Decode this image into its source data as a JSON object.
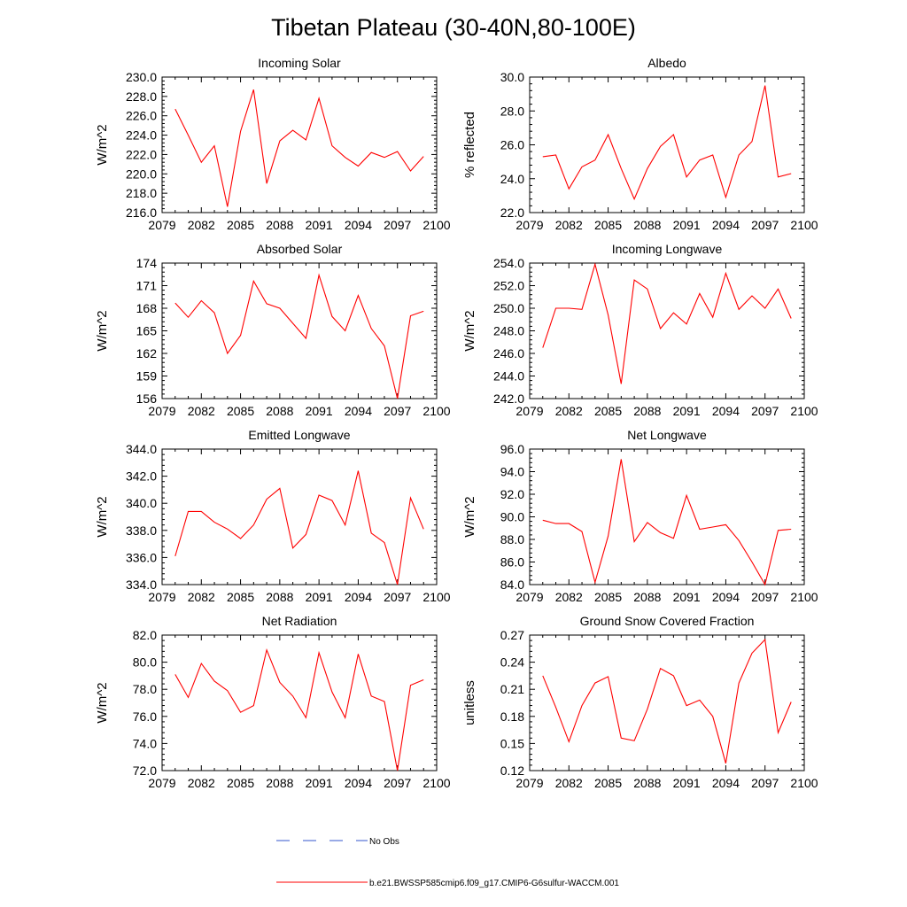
{
  "figure": {
    "title": "Tibetan Plateau (30-40N,80-100E)",
    "legend": [
      {
        "label": "No Obs",
        "color": "#3355cc",
        "style": "dashed"
      },
      {
        "label": "b.e21.BWSSP585cmip6.f09_g17.CMIP6-G6sulfur-WACCM.001",
        "color": "#ff0000",
        "style": "solid"
      }
    ]
  },
  "chart_data": [
    {
      "type": "line",
      "title": "Incoming Solar",
      "ylabel": "W/m^2",
      "xlim": [
        2079,
        2100
      ],
      "xticks": [
        2079,
        2082,
        2085,
        2088,
        2091,
        2094,
        2097,
        2100
      ],
      "ylim": [
        216.0,
        230.0
      ],
      "yticks": [
        216.0,
        218.0,
        220.0,
        222.0,
        224.0,
        226.0,
        228.0,
        230.0
      ],
      "tick_decimals": 1,
      "x": [
        2080,
        2081,
        2082,
        2083,
        2084,
        2085,
        2086,
        2087,
        2088,
        2089,
        2090,
        2091,
        2092,
        2093,
        2094,
        2095,
        2096,
        2097,
        2098,
        2099
      ],
      "series": [
        {
          "values": [
            226.7,
            224.0,
            221.2,
            222.9,
            216.6,
            224.4,
            228.7,
            219.0,
            223.4,
            224.5,
            223.5,
            227.8,
            222.9,
            221.7,
            220.8,
            222.2,
            221.7,
            222.3,
            220.3,
            221.8
          ],
          "color": "#ff0000"
        }
      ]
    },
    {
      "type": "line",
      "title": "Albedo",
      "ylabel": "% reflected",
      "xlim": [
        2079,
        2100
      ],
      "xticks": [
        2079,
        2082,
        2085,
        2088,
        2091,
        2094,
        2097,
        2100
      ],
      "ylim": [
        22.0,
        30.0
      ],
      "yticks": [
        22.0,
        24.0,
        26.0,
        28.0,
        30.0
      ],
      "tick_decimals": 1,
      "x": [
        2080,
        2081,
        2082,
        2083,
        2084,
        2085,
        2086,
        2087,
        2088,
        2089,
        2090,
        2091,
        2092,
        2093,
        2094,
        2095,
        2096,
        2097,
        2098,
        2099
      ],
      "series": [
        {
          "values": [
            25.3,
            25.4,
            23.4,
            24.7,
            25.1,
            26.6,
            24.6,
            22.8,
            24.6,
            25.9,
            26.6,
            24.1,
            25.1,
            25.4,
            22.9,
            25.4,
            26.2,
            29.5,
            24.1,
            24.3
          ],
          "color": "#ff0000"
        }
      ]
    },
    {
      "type": "line",
      "title": "Absorbed Solar",
      "ylabel": "W/m^2",
      "xlim": [
        2079,
        2100
      ],
      "xticks": [
        2079,
        2082,
        2085,
        2088,
        2091,
        2094,
        2097,
        2100
      ],
      "ylim": [
        156,
        174
      ],
      "yticks": [
        156,
        159,
        162,
        165,
        168,
        171,
        174
      ],
      "tick_decimals": 0,
      "x": [
        2080,
        2081,
        2082,
        2083,
        2084,
        2085,
        2086,
        2087,
        2088,
        2089,
        2090,
        2091,
        2092,
        2093,
        2094,
        2095,
        2096,
        2097,
        2098,
        2099
      ],
      "series": [
        {
          "values": [
            168.7,
            166.8,
            169.0,
            167.4,
            162.0,
            164.4,
            171.6,
            168.6,
            168.0,
            166.0,
            164.0,
            172.4,
            166.9,
            165.0,
            169.7,
            165.3,
            163.0,
            156.0,
            167.0,
            167.6
          ],
          "color": "#ff0000"
        }
      ]
    },
    {
      "type": "line",
      "title": "Incoming Longwave",
      "ylabel": "W/m^2",
      "xlim": [
        2079,
        2100
      ],
      "xticks": [
        2079,
        2082,
        2085,
        2088,
        2091,
        2094,
        2097,
        2100
      ],
      "ylim": [
        242.0,
        254.0
      ],
      "yticks": [
        242.0,
        244.0,
        246.0,
        248.0,
        250.0,
        252.0,
        254.0
      ],
      "tick_decimals": 1,
      "x": [
        2080,
        2081,
        2082,
        2083,
        2084,
        2085,
        2086,
        2087,
        2088,
        2089,
        2090,
        2091,
        2092,
        2093,
        2094,
        2095,
        2096,
        2097,
        2098,
        2099
      ],
      "series": [
        {
          "values": [
            246.5,
            250.0,
            250.0,
            249.9,
            253.9,
            249.4,
            243.3,
            252.5,
            251.7,
            248.2,
            249.6,
            248.6,
            251.3,
            249.2,
            253.1,
            249.9,
            251.1,
            250.0,
            251.7,
            249.1
          ],
          "color": "#ff0000"
        }
      ]
    },
    {
      "type": "line",
      "title": "Emitted Longwave",
      "ylabel": "W/m^2",
      "xlim": [
        2079,
        2100
      ],
      "xticks": [
        2079,
        2082,
        2085,
        2088,
        2091,
        2094,
        2097,
        2100
      ],
      "ylim": [
        334.0,
        344.0
      ],
      "yticks": [
        334.0,
        336.0,
        338.0,
        340.0,
        342.0,
        344.0
      ],
      "tick_decimals": 1,
      "x": [
        2080,
        2081,
        2082,
        2083,
        2084,
        2085,
        2086,
        2087,
        2088,
        2089,
        2090,
        2091,
        2092,
        2093,
        2094,
        2095,
        2096,
        2097,
        2098,
        2099
      ],
      "series": [
        {
          "values": [
            336.1,
            339.4,
            339.4,
            338.6,
            338.1,
            337.4,
            338.4,
            340.3,
            341.1,
            336.7,
            337.7,
            340.6,
            340.2,
            338.4,
            342.4,
            337.8,
            337.1,
            334.0,
            340.4,
            338.1
          ],
          "color": "#ff0000"
        }
      ]
    },
    {
      "type": "line",
      "title": "Net Longwave",
      "ylabel": "W/m^2",
      "xlim": [
        2079,
        2100
      ],
      "xticks": [
        2079,
        2082,
        2085,
        2088,
        2091,
        2094,
        2097,
        2100
      ],
      "ylim": [
        84.0,
        96.0
      ],
      "yticks": [
        84.0,
        86.0,
        88.0,
        90.0,
        92.0,
        94.0,
        96.0
      ],
      "tick_decimals": 1,
      "x": [
        2080,
        2081,
        2082,
        2083,
        2084,
        2085,
        2086,
        2087,
        2088,
        2089,
        2090,
        2091,
        2092,
        2093,
        2094,
        2095,
        2096,
        2097,
        2098,
        2099
      ],
      "series": [
        {
          "values": [
            89.7,
            89.4,
            89.4,
            88.7,
            84.2,
            88.3,
            95.1,
            87.8,
            89.5,
            88.6,
            88.1,
            91.9,
            88.9,
            89.1,
            89.3,
            87.9,
            86.0,
            84.0,
            88.8,
            88.9
          ],
          "color": "#ff0000"
        }
      ]
    },
    {
      "type": "line",
      "title": "Net Radiation",
      "ylabel": "W/m^2",
      "xlim": [
        2079,
        2100
      ],
      "xticks": [
        2079,
        2082,
        2085,
        2088,
        2091,
        2094,
        2097,
        2100
      ],
      "ylim": [
        72.0,
        82.0
      ],
      "yticks": [
        72.0,
        74.0,
        76.0,
        78.0,
        80.0,
        82.0
      ],
      "tick_decimals": 1,
      "x": [
        2080,
        2081,
        2082,
        2083,
        2084,
        2085,
        2086,
        2087,
        2088,
        2089,
        2090,
        2091,
        2092,
        2093,
        2094,
        2095,
        2096,
        2097,
        2098,
        2099
      ],
      "series": [
        {
          "values": [
            79.1,
            77.4,
            79.9,
            78.6,
            77.9,
            76.3,
            76.8,
            80.9,
            78.5,
            77.5,
            75.9,
            80.7,
            77.8,
            75.9,
            80.6,
            77.5,
            77.1,
            72.0,
            78.3,
            78.7
          ],
          "color": "#ff0000"
        }
      ]
    },
    {
      "type": "line",
      "title": "Ground Snow Covered Fraction",
      "ylabel": "unitless",
      "xlim": [
        2079,
        2100
      ],
      "xticks": [
        2079,
        2082,
        2085,
        2088,
        2091,
        2094,
        2097,
        2100
      ],
      "ylim": [
        0.12,
        0.27
      ],
      "yticks": [
        0.12,
        0.15,
        0.18,
        0.21,
        0.24,
        0.27
      ],
      "tick_decimals": 2,
      "x": [
        2080,
        2081,
        2082,
        2083,
        2084,
        2085,
        2086,
        2087,
        2088,
        2089,
        2090,
        2091,
        2092,
        2093,
        2094,
        2095,
        2096,
        2097,
        2098,
        2099
      ],
      "series": [
        {
          "values": [
            0.225,
            0.19,
            0.152,
            0.192,
            0.217,
            0.224,
            0.156,
            0.153,
            0.188,
            0.233,
            0.225,
            0.192,
            0.198,
            0.18,
            0.128,
            0.217,
            0.25,
            0.265,
            0.162,
            0.196
          ],
          "color": "#ff0000"
        }
      ]
    }
  ]
}
